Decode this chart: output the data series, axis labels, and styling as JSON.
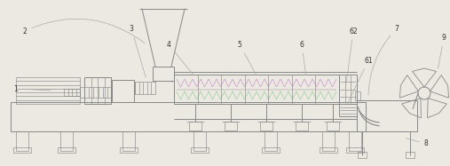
{
  "bg_color": "#ece9e3",
  "line_color": "#999999",
  "dark_line": "#888888",
  "fig_width": 5.07,
  "fig_height": 1.87,
  "dpi": 100,
  "screw_color_top": "#cc99cc",
  "screw_color_bot": "#99cc99",
  "label_fontsize": 5.5,
  "label_color": "#333333",
  "lw_main": 0.7,
  "lw_thin": 0.45
}
